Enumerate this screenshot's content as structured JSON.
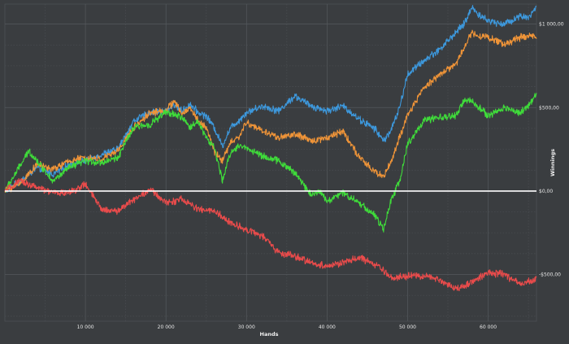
{
  "chart_data": {
    "type": "line",
    "title": "",
    "xlabel": "Hands",
    "ylabel": "Winnings",
    "xlim": [
      0,
      66000
    ],
    "ylim": [
      -780,
      1120
    ],
    "grid": true,
    "legend": "none",
    "x_ticks": [
      10000,
      20000,
      30000,
      40000,
      50000,
      60000
    ],
    "x_tick_labels": [
      "10 000",
      "20 000",
      "30 000",
      "40 000",
      "50 000",
      "60 000"
    ],
    "y_ticks": [
      1000,
      500,
      0,
      -500
    ],
    "y_tick_labels": [
      "$1 000,00",
      "$500,00",
      "$0,00",
      "-$500,00"
    ],
    "zero_line_color": "#ffffff",
    "series": [
      {
        "color": "#3d98dc",
        "x": [
          0,
          2000,
          4000,
          6000,
          8000,
          10000,
          12000,
          14000,
          16000,
          18000,
          20000,
          21000,
          22000,
          23000,
          24000,
          25000,
          26000,
          27000,
          28000,
          29000,
          30000,
          32000,
          34000,
          36000,
          38000,
          40000,
          42000,
          44000,
          46000,
          47000,
          48000,
          49000,
          50000,
          52000,
          54000,
          56000,
          57000,
          58000,
          59000,
          60000,
          62000,
          64000,
          65000,
          66000
        ],
        "y": [
          0,
          60,
          140,
          100,
          160,
          180,
          220,
          250,
          420,
          470,
          480,
          520,
          480,
          520,
          470,
          450,
          380,
          270,
          380,
          420,
          470,
          510,
          480,
          570,
          510,
          480,
          510,
          430,
          370,
          300,
          370,
          500,
          700,
          780,
          850,
          950,
          1000,
          1100,
          1050,
          1020,
          1000,
          1050,
          1040,
          1100
        ]
      },
      {
        "color": "#ef9438",
        "x": [
          0,
          2000,
          4000,
          6000,
          8000,
          10000,
          12000,
          14000,
          16000,
          18000,
          20000,
          21000,
          22000,
          23000,
          24000,
          25000,
          26000,
          27000,
          28000,
          29000,
          30000,
          32000,
          34000,
          36000,
          38000,
          40000,
          42000,
          44000,
          46000,
          47000,
          48000,
          49000,
          50000,
          52000,
          54000,
          56000,
          57000,
          58000,
          59000,
          60000,
          62000,
          64000,
          65000,
          66000
        ],
        "y": [
          0,
          50,
          160,
          130,
          180,
          200,
          190,
          240,
          380,
          470,
          480,
          540,
          460,
          500,
          420,
          380,
          240,
          180,
          290,
          320,
          410,
          360,
          320,
          340,
          300,
          320,
          360,
          200,
          110,
          90,
          180,
          320,
          450,
          620,
          700,
          760,
          860,
          950,
          930,
          920,
          880,
          920,
          930,
          930
        ]
      },
      {
        "color": "#3fdc3a",
        "x": [
          0,
          2000,
          3000,
          4000,
          6000,
          8000,
          10000,
          12000,
          14000,
          16000,
          18000,
          20000,
          21000,
          22000,
          23000,
          24000,
          25000,
          26000,
          27000,
          28000,
          29000,
          30000,
          32000,
          34000,
          36000,
          38000,
          39000,
          40000,
          42000,
          44000,
          46000,
          47000,
          48000,
          49000,
          50000,
          52000,
          54000,
          56000,
          57000,
          58000,
          60000,
          62000,
          64000,
          65000,
          66000
        ],
        "y": [
          0,
          160,
          240,
          180,
          60,
          140,
          180,
          170,
          200,
          380,
          400,
          470,
          460,
          440,
          380,
          420,
          320,
          260,
          60,
          230,
          270,
          260,
          210,
          180,
          110,
          -20,
          0,
          -60,
          -10,
          -70,
          -150,
          -230,
          -50,
          60,
          280,
          420,
          440,
          450,
          540,
          540,
          450,
          500,
          470,
          510,
          580
        ]
      },
      {
        "color": "#e94b4b",
        "x": [
          0,
          2000,
          4000,
          6000,
          8000,
          10000,
          12000,
          14000,
          16000,
          18000,
          20000,
          22000,
          24000,
          26000,
          28000,
          30000,
          32000,
          34000,
          36000,
          38000,
          40000,
          42000,
          44000,
          46000,
          48000,
          50000,
          52000,
          54000,
          56000,
          58000,
          60000,
          62000,
          64000,
          66000
        ],
        "y": [
          0,
          60,
          20,
          -10,
          -10,
          40,
          -110,
          -120,
          -50,
          10,
          -70,
          -50,
          -110,
          -120,
          -190,
          -230,
          -270,
          -370,
          -390,
          -430,
          -450,
          -430,
          -400,
          -440,
          -520,
          -510,
          -510,
          -530,
          -590,
          -540,
          -490,
          -500,
          -560,
          -530
        ]
      }
    ]
  }
}
